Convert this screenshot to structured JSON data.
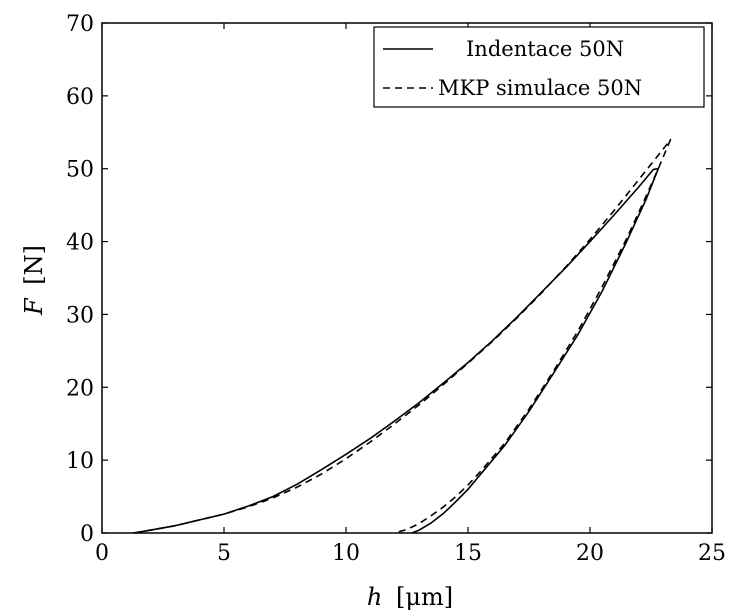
{
  "chart_data": {
    "type": "line",
    "title": "",
    "xlabel_italic": "h",
    "xlabel_unit": "[μm]",
    "ylabel_italic": "F",
    "ylabel_unit": "[N]",
    "xlim": [
      0,
      25
    ],
    "ylim": [
      0,
      70
    ],
    "xticks": [
      0,
      5,
      10,
      15,
      20,
      25
    ],
    "yticks": [
      0,
      10,
      20,
      30,
      40,
      50,
      60,
      70
    ],
    "grid": false,
    "legend_position": "top-right",
    "series": [
      {
        "name": "Indentace 50N",
        "style": "solid",
        "color": "#000000",
        "x": [
          1.3,
          2,
          3,
          4,
          5,
          6,
          7,
          8,
          9,
          10,
          11,
          12,
          13,
          14,
          15,
          16,
          17,
          18,
          19,
          20,
          21,
          22,
          22.6,
          22.8,
          22.3,
          21.5,
          20.5,
          19.5,
          18.5,
          17.5,
          16.5,
          15.5,
          15,
          14.5,
          14,
          13.5,
          13,
          12.7
        ],
        "y": [
          0,
          0.4,
          1.0,
          1.8,
          2.6,
          3.7,
          5.0,
          6.7,
          8.7,
          10.8,
          13.0,
          15.4,
          17.9,
          20.6,
          23.4,
          26.4,
          29.6,
          33.0,
          36.4,
          40.0,
          43.7,
          47.5,
          49.9,
          50.0,
          45.8,
          40.0,
          33.2,
          27.2,
          21.9,
          16.7,
          12.0,
          8.0,
          6.0,
          4.3,
          2.7,
          1.4,
          0.4,
          0
        ]
      },
      {
        "name": "MKP simulace 50N",
        "style": "dashed",
        "color": "#000000",
        "x": [
          1.3,
          2,
          3,
          4,
          5,
          6,
          7,
          8,
          9,
          10,
          11,
          12,
          13,
          14,
          15,
          16,
          17,
          18,
          19,
          20,
          21,
          22,
          23,
          23.3,
          22.8,
          22.2,
          21.5,
          20.5,
          19.5,
          18.5,
          17.5,
          16.5,
          15.5,
          15,
          14.5,
          14,
          13.5,
          13,
          12.5,
          12
        ],
        "y": [
          0,
          0.4,
          1.0,
          1.8,
          2.6,
          3.6,
          4.8,
          6.3,
          8.1,
          10.2,
          12.5,
          15.0,
          17.6,
          20.4,
          23.3,
          26.3,
          29.5,
          32.9,
          36.5,
          40.3,
          44.3,
          48.5,
          52.7,
          54.0,
          50.0,
          45.5,
          40.4,
          33.8,
          27.7,
          22.2,
          17.0,
          12.3,
          8.4,
          6.6,
          5.0,
          3.6,
          2.4,
          1.3,
          0.5,
          0
        ]
      }
    ]
  }
}
